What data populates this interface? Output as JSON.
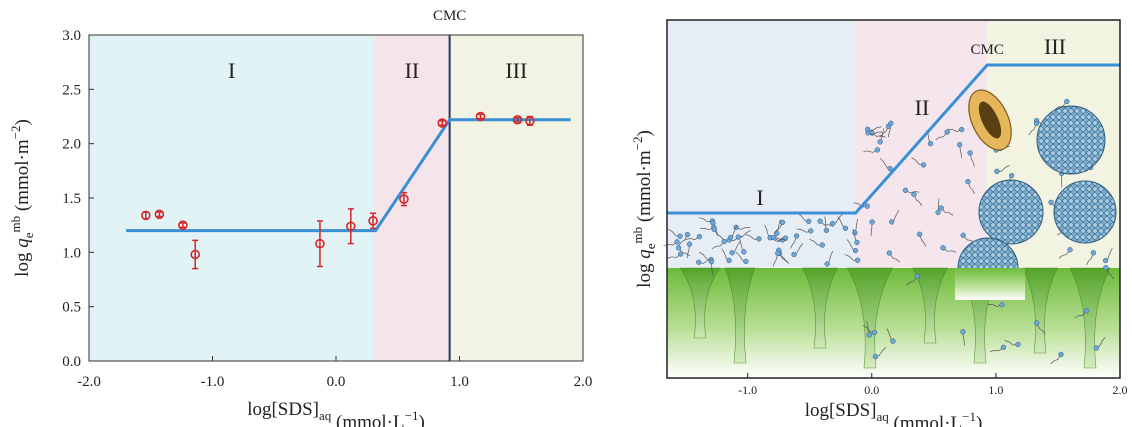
{
  "chart_data": [
    {
      "type": "scatter",
      "annotation": "CMC",
      "cmc": 0.92,
      "cmc_color": "#1f3a5f",
      "x_label": {
        "pre": "log[SDS]",
        "sub": "aq",
        "unit": " (mmol·L",
        "unit_sup": "−1",
        "post": ")"
      },
      "y_label": {
        "pre": "log ",
        "var": "q",
        "sub": "e",
        "sup": "mb",
        "unit": " (mmol·m",
        "unit_sup": "−2",
        "post": ")"
      },
      "xlim": [
        -2,
        2
      ],
      "xticks": [
        {
          "value": -2,
          "label": "-2.0"
        },
        {
          "value": -1,
          "label": "-1.0"
        },
        {
          "value": 0,
          "label": "0.0"
        },
        {
          "value": 1,
          "label": "1.0"
        },
        {
          "value": 2,
          "label": "2.0"
        }
      ],
      "ylim": [
        0,
        3
      ],
      "yticks": [
        {
          "value": 0,
          "label": "0.0"
        },
        {
          "value": 0.5,
          "label": "0.5"
        },
        {
          "value": 1,
          "label": "1.0"
        },
        {
          "value": 1.5,
          "label": "1.5"
        },
        {
          "value": 2,
          "label": "2.0"
        },
        {
          "value": 2.5,
          "label": "2.5"
        },
        {
          "value": 3,
          "label": "3.0"
        }
      ],
      "regions": [
        {
          "label": "I",
          "from": -2,
          "to": 0.31,
          "color": "#e1f3f4"
        },
        {
          "label": "II",
          "from": 0.31,
          "to": 0.92,
          "color": "#f5e4ea"
        },
        {
          "label": "III",
          "from": 0.92,
          "to": 2,
          "color": "#f3f3e3"
        }
      ],
      "points": {
        "color": "#d62728",
        "x": [
          -1.54,
          -1.43,
          -1.24,
          -1.14,
          -0.13,
          0.12,
          0.3,
          0.55,
          0.86,
          1.17,
          1.47,
          1.57
        ],
        "values": [
          1.34,
          1.35,
          1.25,
          0.98,
          1.08,
          1.24,
          1.29,
          1.49,
          2.19,
          2.25,
          2.22,
          2.21
        ],
        "errors": [
          0.03,
          0.02,
          0.02,
          0.13,
          0.21,
          0.16,
          0.07,
          0.06,
          0.02,
          0.02,
          0.02,
          0.04
        ]
      },
      "fit_line": {
        "color": "#3a8fd6",
        "x": [
          -1.7,
          0.32,
          0.92,
          1.9
        ],
        "values": [
          1.2,
          1.2,
          2.22,
          2.22
        ]
      }
    },
    {
      "type": "schematic",
      "annotation": "CMC",
      "x_label": {
        "pre": "log[SDS]",
        "sub": "aq",
        "unit": " (mmol·L",
        "unit_sup": "−1",
        "post": ")"
      },
      "y_label": {
        "pre": "log ",
        "var": "q",
        "sub": "e",
        "sup": "mb",
        "unit": " (mmol·m",
        "unit_sup": "−2",
        "post": ")"
      },
      "xlim": [
        -1.65,
        2
      ],
      "xticks": [
        {
          "value": -1,
          "label": "-1.0"
        },
        {
          "value": 0,
          "label": "0.0"
        },
        {
          "value": 1,
          "label": "1.0"
        },
        {
          "value": 2,
          "label": "2.0"
        }
      ],
      "line_color": "#3a8fd6",
      "regions": [
        {
          "label": "I",
          "from": -1.65,
          "to": -0.13,
          "color": "#e6edf5"
        },
        {
          "label": "II",
          "from": -0.13,
          "to": 0.93,
          "color": "#f5e5ec"
        },
        {
          "label": "III",
          "from": 0.93,
          "to": 2,
          "color": "#f3f3e1"
        }
      ]
    }
  ]
}
